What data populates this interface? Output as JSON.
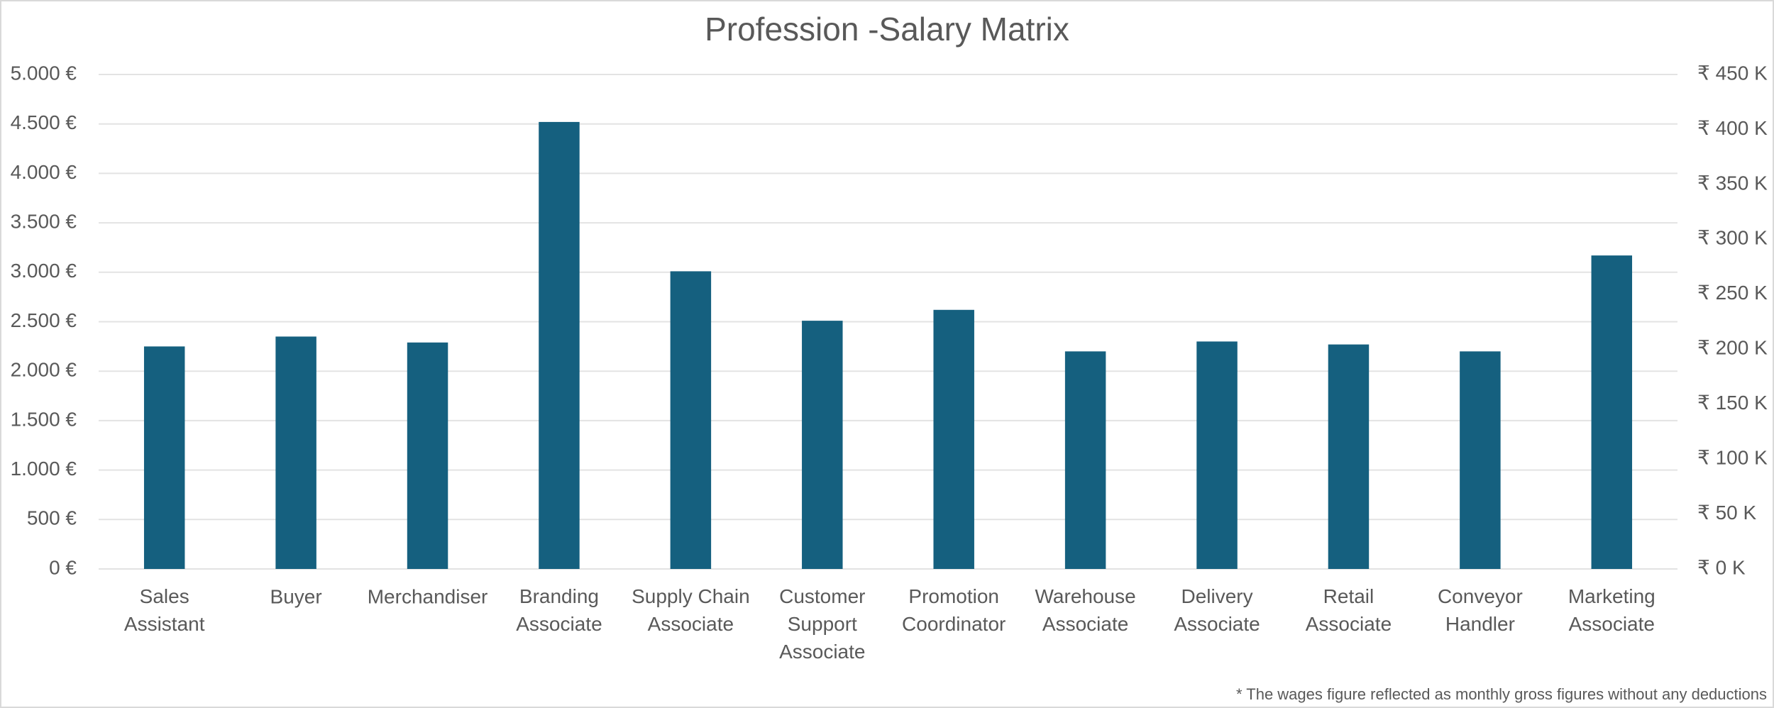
{
  "chart_data": {
    "type": "bar",
    "title": "Profession -Salary Matrix",
    "categories": [
      "Sales Assistant",
      "Buyer",
      "Merchandiser",
      "Branding Associate",
      "Supply Chain Associate",
      "Customer Support Associate",
      "Promotion Coordinator",
      "Warehouse Associate",
      "Delivery Associate",
      "Retail Associate",
      "Conveyor Handler",
      "Marketing Associate"
    ],
    "values": [
      2250,
      2350,
      2290,
      4520,
      3010,
      2510,
      2620,
      2200,
      2300,
      2270,
      2200,
      3170
    ],
    "color": "#15607f",
    "ylim": [
      0,
      5000
    ],
    "yticks": [
      {
        "value": 0,
        "label": "0 €"
      },
      {
        "value": 500,
        "label": "500 €"
      },
      {
        "value": 1000,
        "label": "1.000 €"
      },
      {
        "value": 1500,
        "label": "1.500 €"
      },
      {
        "value": 2000,
        "label": "2.000 €"
      },
      {
        "value": 2500,
        "label": "2.500 €"
      },
      {
        "value": 3000,
        "label": "3.000 €"
      },
      {
        "value": 3500,
        "label": "3.500 €"
      },
      {
        "value": 4000,
        "label": "4.000 €"
      },
      {
        "value": 4500,
        "label": "4.500 €"
      },
      {
        "value": 5000,
        "label": "5.000 €"
      }
    ],
    "y2lim": [
      0,
      450000
    ],
    "y2ticks": [
      {
        "value": 0,
        "label": "₹ 0 K"
      },
      {
        "value": 50000,
        "label": "₹ 50 K"
      },
      {
        "value": 100000,
        "label": "₹ 100 K"
      },
      {
        "value": 150000,
        "label": "₹ 150 K"
      },
      {
        "value": 200000,
        "label": "₹ 200 K"
      },
      {
        "value": 250000,
        "label": "₹ 250 K"
      },
      {
        "value": 300000,
        "label": "₹ 300 K"
      },
      {
        "value": 350000,
        "label": "₹ 350 K"
      },
      {
        "value": 400000,
        "label": "₹ 400 K"
      },
      {
        "value": 450000,
        "label": "₹ 450 K"
      }
    ],
    "grid": true,
    "footnote": "* The wages figure reflected as monthly gross figures without any deductions"
  }
}
